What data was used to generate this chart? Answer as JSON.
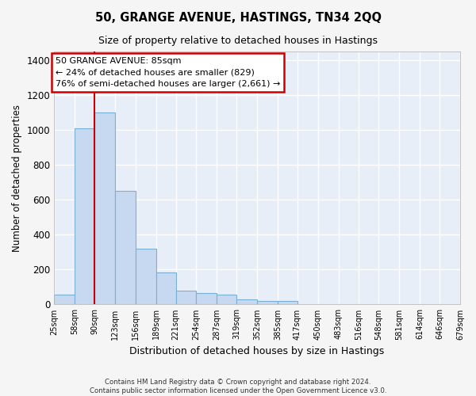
{
  "title": "50, GRANGE AVENUE, HASTINGS, TN34 2QQ",
  "subtitle": "Size of property relative to detached houses in Hastings",
  "xlabel": "Distribution of detached houses by size in Hastings",
  "ylabel": "Number of detached properties",
  "bar_color": "#c6d9f0",
  "bar_edge_color": "#7bafd4",
  "bg_color": "#e8eef8",
  "grid_color": "#ffffff",
  "annotation_line1": "50 GRANGE AVENUE: 85sqm",
  "annotation_line2": "← 24% of detached houses are smaller (829)",
  "annotation_line3": "76% of semi-detached houses are larger (2,661) →",
  "annotation_box_color": "#ffffff",
  "annotation_box_edge": "#cc0000",
  "vline_color": "#cc0000",
  "vline_x": 90,
  "bins": [
    25,
    58,
    90,
    123,
    156,
    189,
    221,
    254,
    287,
    319,
    352,
    385,
    417,
    450,
    483,
    516,
    548,
    581,
    614,
    646,
    679
  ],
  "bin_labels": [
    "25sqm",
    "58sqm",
    "90sqm",
    "123sqm",
    "156sqm",
    "189sqm",
    "221sqm",
    "254sqm",
    "287sqm",
    "319sqm",
    "352sqm",
    "385sqm",
    "417sqm",
    "450sqm",
    "483sqm",
    "516sqm",
    "548sqm",
    "581sqm",
    "614sqm",
    "646sqm",
    "679sqm"
  ],
  "bar_heights": [
    55,
    1010,
    1100,
    650,
    320,
    185,
    80,
    65,
    55,
    30,
    20,
    20,
    0,
    0,
    0,
    0,
    0,
    0,
    0,
    0
  ],
  "ylim": [
    0,
    1450
  ],
  "yticks": [
    0,
    200,
    400,
    600,
    800,
    1000,
    1200,
    1400
  ],
  "footer_line1": "Contains HM Land Registry data © Crown copyright and database right 2024.",
  "footer_line2": "Contains public sector information licensed under the Open Government Licence v3.0."
}
